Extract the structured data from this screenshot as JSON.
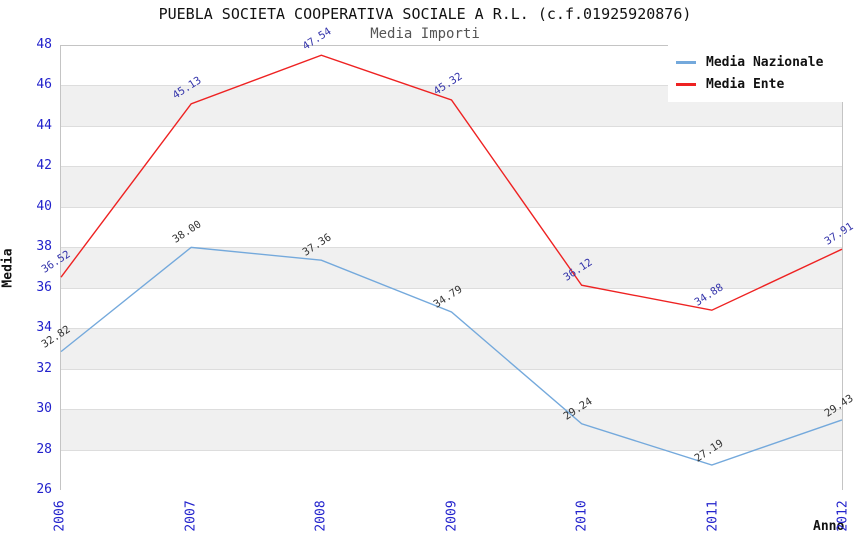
{
  "header": {
    "title": "PUEBLA SOCIETA COOPERATIVA SOCIALE A R.L. (c.f.01925920876)",
    "subtitle": "Media Importi"
  },
  "chart_data": {
    "type": "line",
    "x": [
      "2006",
      "2007",
      "2008",
      "2009",
      "2010",
      "2011",
      "2012"
    ],
    "series": [
      {
        "name": "Media Nazionale",
        "slug": "media-nazionale",
        "color": "#74A9DC",
        "label_color": "#333333",
        "values": [
          32.82,
          38.0,
          37.36,
          34.79,
          29.24,
          27.19,
          29.43
        ],
        "labels": [
          "32.82",
          "38.00",
          "37.36",
          "34.79",
          "29.24",
          "27.19",
          "29.43"
        ]
      },
      {
        "name": "Media Ente",
        "slug": "media-ente",
        "color": "#EE2222",
        "label_color": "#3333AA",
        "values": [
          36.52,
          45.13,
          47.54,
          45.32,
          36.12,
          34.88,
          37.91
        ],
        "labels": [
          "36.52",
          "45.13",
          "47.54",
          "45.32",
          "36.12",
          "34.88",
          "37.91"
        ]
      }
    ],
    "xlabel": "Anno",
    "ylabel": "Media",
    "ylim": [
      26,
      48
    ],
    "ytick_step": 2,
    "legend_position": "top-right",
    "grid": "horizontal-bands",
    "band_colors": [
      "#FFFFFF",
      "#F0F0F0"
    ],
    "axis_tick_color": "#2222CC",
    "gridline_color": "#DDDDDD",
    "plot_border_color": "#C4C4C4"
  }
}
